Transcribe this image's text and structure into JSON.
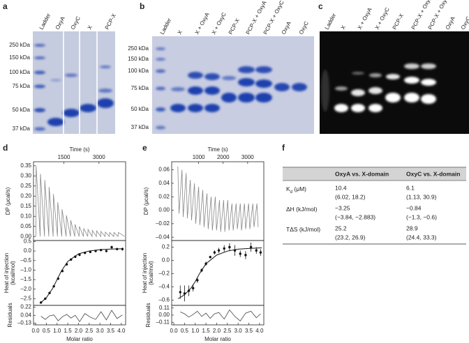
{
  "panel_labels": [
    "a",
    "b",
    "c",
    "d",
    "e",
    "f"
  ],
  "gels": [
    {
      "lanes": [
        "Ladder",
        "OxyA",
        "OxyC",
        "X",
        "PCP-X"
      ],
      "markers": [
        "250 kDa",
        "150 kDa",
        "100 kDa",
        "75 kDa",
        "50 kDa",
        "37 kDa"
      ]
    },
    {
      "lanes": [
        "Ladder",
        "X",
        "X + OxyA",
        "X + OxyC",
        "PCP-X",
        "PCP-X + OxyA",
        "PCP-X + OxyC",
        "OxyA",
        "OxyC"
      ],
      "markers": [
        "250 kDa",
        "150 kDa",
        "100 kDa",
        "75 kDa",
        "50 kDa",
        "37 kDa"
      ]
    },
    {
      "lanes": [
        "Ladder",
        "X",
        "X + OxyA",
        "X + OxyC",
        "PCP-X",
        "PCP-X + OxyA",
        "PCP-X + OxyC",
        "OxyA",
        "OxyC"
      ]
    }
  ],
  "chart_data": [
    {
      "type": "line",
      "x_label": "Time (s)",
      "y_label": "DP (μcal/s)",
      "x": [
        300,
        312,
        485,
        497,
        670,
        682,
        855,
        867,
        1040,
        1052,
        1225,
        1237,
        1410,
        1422,
        1595,
        1607,
        1780,
        1792,
        1965,
        1977,
        2150,
        2162,
        2335,
        2347,
        2520,
        2532,
        2705,
        2717,
        2890,
        2902,
        3075,
        3087,
        3260,
        3272,
        3445,
        3457,
        3630,
        3642,
        3815,
        3827,
        4100
      ],
      "values": [
        0,
        0.35,
        0,
        0.31,
        0,
        0.28,
        0,
        0.245,
        0,
        0.21,
        0,
        0.17,
        0,
        0.135,
        0,
        0.105,
        0,
        0.08,
        0,
        0.06,
        0,
        0.05,
        0,
        0.04,
        0,
        0.035,
        0,
        0.03,
        0,
        0.028,
        0,
        0.025,
        0,
        0.022,
        0,
        0.02,
        0,
        0.02,
        0,
        0.02,
        0
      ],
      "color": "#888888",
      "xlim": [
        200,
        4140
      ],
      "xticks": [
        1500,
        3000
      ],
      "ylim": [
        -0.02,
        0.37
      ],
      "yticks": [
        {
          "value": 0,
          "label": "0.00"
        },
        0.05,
        {
          "value": 0.1,
          "label": "0.10"
        },
        0.15,
        {
          "value": 0.2,
          "label": "0.20"
        },
        0.25,
        {
          "value": 0.3,
          "label": "0.30"
        },
        0.35
      ]
    },
    {
      "type": "scatter",
      "y_label": [
        "Heat of injection",
        "(kcal/mol)"
      ],
      "x": [
        0.25,
        0.45,
        0.65,
        0.85,
        1.05,
        1.25,
        1.45,
        1.65,
        1.85,
        2.05,
        2.3,
        2.55,
        2.8,
        3.05,
        3.3,
        3.55,
        3.8,
        4.05
      ],
      "values": [
        -2.7,
        -2.5,
        -2.2,
        -1.85,
        -1.45,
        -1.05,
        -0.7,
        -0.45,
        -0.3,
        -0.2,
        -0.1,
        -0.05,
        0,
        0.05,
        0,
        0.2,
        0.1,
        0.1
      ],
      "errors": [
        0.06,
        0.06,
        0.06,
        0.06,
        0.06,
        0.06,
        0.06,
        0.06,
        0.06,
        0.06,
        0.06,
        0.06,
        0.06,
        0.06,
        0.06,
        0.08,
        0.06,
        0.08
      ],
      "fit_x": [
        0.2,
        0.5,
        0.8,
        1.0,
        1.2,
        1.5,
        2.0,
        2.5,
        3.0,
        3.5,
        4.1
      ],
      "fit_values": [
        -2.75,
        -2.45,
        -1.95,
        -1.5,
        -1.05,
        -0.55,
        -0.15,
        0,
        0.07,
        0.1,
        0.12
      ],
      "color": "#111111",
      "xlim": [
        -0.1,
        4.2
      ],
      "ylim": [
        -2.85,
        0.55
      ],
      "yticks": [
        0.5,
        {
          "value": 0,
          "label": "0.0"
        },
        {
          "value": -0.5,
          "label": "–0.5"
        },
        {
          "value": -1,
          "label": "–1.0"
        },
        {
          "value": -1.5,
          "label": "–1.5"
        },
        {
          "value": -2,
          "label": "–2.0"
        },
        {
          "value": -2.5,
          "label": "–2.5"
        }
      ]
    },
    {
      "type": "line",
      "x_label": "Molar ratio",
      "y_label": "Residuals",
      "x": [
        0.25,
        0.45,
        0.65,
        0.85,
        1.05,
        1.25,
        1.45,
        1.65,
        1.85,
        2.05,
        2.3,
        2.55,
        2.8,
        3.05,
        3.3,
        3.55,
        3.8,
        4.05
      ],
      "values": [
        0.02,
        -0.05,
        0.03,
        0.05,
        -0.08,
        0.01,
        0.06,
        -0.02,
        0.04,
        -0.1,
        0.08,
        0,
        -0.05,
        0.12,
        -0.06,
        0.15,
        -0.03,
        0.05
      ],
      "color": "#444444",
      "xlim": [
        -0.1,
        4.2
      ],
      "xticks": [
        {
          "value": 0,
          "label": "0.0"
        },
        0.5,
        {
          "value": 1,
          "label": "1.0"
        },
        1.5,
        {
          "value": 2,
          "label": "2.0"
        },
        2.5,
        {
          "value": 3,
          "label": "3.0"
        },
        3.5,
        {
          "value": 4,
          "label": "4.0"
        }
      ],
      "ylim": [
        -0.17,
        0.26
      ],
      "yticks": [
        0.22,
        0.04,
        {
          "value": -0.13,
          "label": "–0.13"
        }
      ]
    },
    {
      "type": "line",
      "x_label": "Time (s)",
      "y_label": "DP (μcal/s)",
      "x": [
        150,
        200,
        320,
        370,
        490,
        540,
        660,
        710,
        830,
        880,
        1000,
        1050,
        1170,
        1220,
        1340,
        1390,
        1510,
        1560,
        1680,
        1730,
        1850,
        1900,
        2020,
        2070,
        2190,
        2240,
        2360,
        2410,
        2530,
        2580,
        2700,
        2750,
        2870,
        2920,
        3040,
        3090,
        3210,
        3260,
        3380,
        3430
      ],
      "values": [
        0.065,
        -0.005,
        0.06,
        -0.01,
        0.055,
        -0.012,
        0.045,
        -0.015,
        0.04,
        -0.02,
        0.035,
        -0.022,
        0.03,
        -0.025,
        0.025,
        -0.028,
        0.02,
        -0.03,
        0.02,
        -0.03,
        0.015,
        -0.032,
        0.015,
        -0.032,
        0.015,
        -0.03,
        0.01,
        -0.03,
        0.01,
        -0.028,
        0.01,
        -0.03,
        0.01,
        -0.028,
        0.01,
        -0.028,
        0.01,
        -0.025,
        0.01,
        -0.025
      ],
      "color": "#888888",
      "xlim": [
        -100,
        3660
      ],
      "xticks": [
        1000,
        2000,
        3000
      ],
      "ylim": [
        -0.045,
        0.072
      ],
      "yticks": [
        {
          "value": -0.04,
          "label": "–0.04"
        },
        {
          "value": -0.02,
          "label": "–0.02"
        },
        {
          "value": 0,
          "label": "0.00"
        },
        0.02,
        0.04,
        0.06
      ]
    },
    {
      "type": "scatter",
      "y_label": [
        "Heat of injection",
        "(kcal/mol)"
      ],
      "x": [
        0.3,
        0.5,
        0.7,
        0.9,
        1.1,
        1.3,
        1.5,
        1.7,
        1.9,
        2.1,
        2.35,
        2.6,
        2.85,
        3.1,
        3.35,
        3.6,
        3.85,
        4.05
      ],
      "values": [
        -0.48,
        -0.5,
        -0.46,
        -0.42,
        -0.3,
        -0.15,
        -0.05,
        0.05,
        0.12,
        0.15,
        0.18,
        0.2,
        0.15,
        0.1,
        0.08,
        0.2,
        0.15,
        0.12
      ],
      "errors": [
        0.1,
        0.12,
        0.08,
        0.05,
        0.04,
        0.03,
        0.03,
        0.02,
        0.03,
        0.04,
        0.05,
        0.06,
        0.08,
        0.05,
        0.06,
        0.07,
        0.05,
        0.05
      ],
      "fit_x": [
        0.2,
        0.5,
        0.8,
        1.0,
        1.2,
        1.5,
        2.0,
        2.5,
        3.0,
        3.5,
        4.1
      ],
      "fit_values": [
        -0.58,
        -0.52,
        -0.42,
        -0.32,
        -0.2,
        -0.05,
        0.08,
        0.14,
        0.17,
        0.18,
        0.19
      ],
      "color": "#111111",
      "xlim": [
        -0.1,
        4.2
      ],
      "ylim": [
        -0.68,
        0.3
      ],
      "yticks": [
        0.2,
        {
          "value": 0,
          "label": "0.0"
        },
        {
          "value": -0.2,
          "label": "–0.2"
        },
        {
          "value": -0.4,
          "label": "–0.4"
        },
        {
          "value": -0.6,
          "label": "–0.6"
        }
      ]
    },
    {
      "type": "line",
      "x_label": "Molar ratio",
      "y_label": "Residuals",
      "x": [
        0.3,
        0.5,
        0.7,
        0.9,
        1.1,
        1.3,
        1.5,
        1.7,
        1.9,
        2.1,
        2.35,
        2.6,
        2.85,
        3.1,
        3.35,
        3.6,
        3.85,
        4.05
      ],
      "values": [
        0.05,
        0.02,
        -0.03,
        0.01,
        0.06,
        -0.02,
        0.03,
        -0.05,
        0.02,
        0.04,
        -0.06,
        0.08,
        -0.02,
        -0.09,
        0.03,
        0.06,
        -0.04,
        0.02
      ],
      "color": "#444444",
      "xlim": [
        -0.1,
        4.2
      ],
      "xticks": [
        {
          "value": 0,
          "label": "0.0"
        },
        0.5,
        {
          "value": 1,
          "label": "1.0"
        },
        1.5,
        {
          "value": 2,
          "label": "2.0"
        },
        2.5,
        {
          "value": 3,
          "label": "3.0"
        },
        3.5,
        {
          "value": 4,
          "label": "4.0"
        }
      ],
      "ylim": [
        -0.15,
        0.15
      ],
      "yticks": [
        0.11,
        {
          "value": 0,
          "label": "0.00"
        },
        {
          "value": -0.11,
          "label": "–0.11"
        }
      ]
    }
  ],
  "table": {
    "header": [
      "OxyA vs. X-domain",
      "OxyC vs. X-domain"
    ],
    "rows": [
      {
        "label": "K",
        "label_sub": "d",
        "label_unit": " (μM)",
        "cells": [
          [
            "10.4",
            "(6.02, 18.2)"
          ],
          [
            "6.1",
            "(1.13, 30.9)"
          ]
        ]
      },
      {
        "label": "ΔH (kJ/mol)",
        "cells": [
          [
            "−3.25",
            "(−3.84, −2.883)"
          ],
          [
            "−0.84",
            "(−1.3, −0.6)"
          ]
        ]
      },
      {
        "label": "TΔS (kJ/mol)",
        "cells": [
          [
            "25.2",
            "(23.2, 26.9)"
          ],
          [
            "28.9",
            "(24.4, 33.3)"
          ]
        ]
      }
    ]
  }
}
